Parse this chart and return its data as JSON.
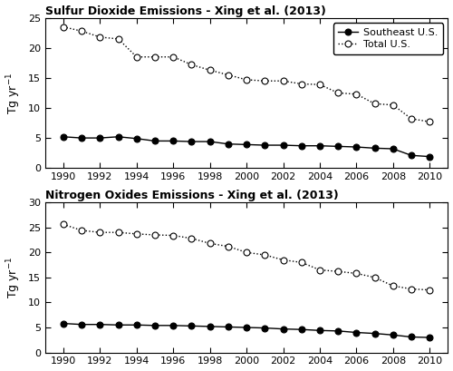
{
  "years": [
    1990,
    1991,
    1992,
    1993,
    1994,
    1995,
    1996,
    1997,
    1998,
    1999,
    2000,
    2001,
    2002,
    2003,
    2004,
    2005,
    2006,
    2007,
    2008,
    2009,
    2010
  ],
  "so2_total_us": [
    23.5,
    22.8,
    21.8,
    21.5,
    18.5,
    18.5,
    18.5,
    17.2,
    16.3,
    15.5,
    14.7,
    14.5,
    14.5,
    14.0,
    13.9,
    12.5,
    12.3,
    10.7,
    10.5,
    8.2,
    7.7
  ],
  "so2_southeast": [
    5.2,
    5.0,
    5.0,
    5.2,
    4.9,
    4.5,
    4.5,
    4.4,
    4.4,
    4.0,
    3.9,
    3.8,
    3.8,
    3.7,
    3.7,
    3.6,
    3.5,
    3.3,
    3.2,
    2.1,
    1.9
  ],
  "nox_total_us": [
    25.6,
    24.4,
    24.0,
    24.0,
    23.7,
    23.5,
    23.4,
    22.8,
    21.8,
    21.2,
    20.0,
    19.5,
    18.5,
    18.0,
    16.5,
    16.2,
    15.8,
    15.0,
    13.3,
    12.7,
    12.5
  ],
  "nox_southeast": [
    5.8,
    5.6,
    5.6,
    5.5,
    5.5,
    5.4,
    5.4,
    5.3,
    5.2,
    5.1,
    5.0,
    4.9,
    4.7,
    4.6,
    4.4,
    4.3,
    4.0,
    3.8,
    3.5,
    3.1,
    3.0
  ],
  "so2_title": "Sulfur Dioxide Emissions - Xing et al. (2013)",
  "nox_title": "Nitrogen Oxides Emissions - Xing et al. (2013)",
  "ylabel": "Tg yr$^{-1}$",
  "so2_ylim": [
    0,
    25
  ],
  "nox_ylim": [
    0,
    30
  ],
  "so2_yticks": [
    0,
    5,
    10,
    15,
    20,
    25
  ],
  "nox_yticks": [
    0,
    5,
    10,
    15,
    20,
    25,
    30
  ],
  "xticks": [
    1990,
    1992,
    1994,
    1996,
    1998,
    2000,
    2002,
    2004,
    2006,
    2008,
    2010
  ],
  "legend_southeast": "Southeast U.S.",
  "legend_total": "Total U.S.",
  "line_color": "black",
  "dot_color_solid": "black",
  "dot_color_open": "white",
  "background_color": "white",
  "title_fontsize": 9,
  "tick_fontsize": 8,
  "ylabel_fontsize": 9,
  "legend_fontsize": 8,
  "marker_size": 5,
  "line_width": 1.0
}
